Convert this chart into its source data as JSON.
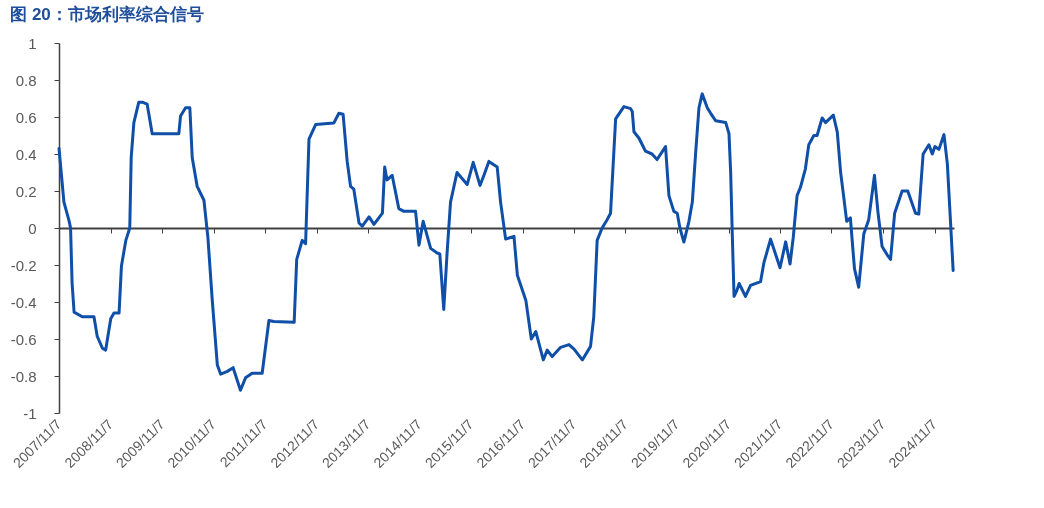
{
  "chart_data": {
    "type": "line",
    "title": "图 20：市场利率综合信号",
    "x": [
      "2007-11-07",
      "2007-12-12",
      "2008-01-17",
      "2008-01-28",
      "2008-02-08",
      "2008-02-22",
      "2008-04-20",
      "2008-07-12",
      "2008-08-04",
      "2008-09-10",
      "2008-10-03",
      "2008-11-08",
      "2008-12-01",
      "2009-01-06",
      "2009-01-23",
      "2009-02-23",
      "2009-03-23",
      "2009-04-02",
      "2009-04-21",
      "2009-05-26",
      "2009-06-19",
      "2009-07-24",
      "2009-08-29",
      "2009-10-28",
      "2010-03-06",
      "2010-03-18",
      "2010-04-23",
      "2010-05-23",
      "2010-06-09",
      "2010-07-14",
      "2010-08-31",
      "2010-09-28",
      "2010-10-29",
      "2010-12-04",
      "2010-12-28",
      "2011-02-13",
      "2011-03-26",
      "2011-05-17",
      "2011-06-22",
      "2011-08-08",
      "2011-10-18",
      "2011-12-05",
      "2012-01-10",
      "2012-06-01",
      "2012-06-19",
      "2012-07-28",
      "2012-08-21",
      "2012-09-14",
      "2012-11-01",
      "2013-03-09",
      "2013-04-14",
      "2013-05-14",
      "2013-06-12",
      "2013-07-06",
      "2013-07-29",
      "2013-09-04",
      "2013-09-27",
      "2013-11-14",
      "2013-12-19",
      "2014-02-17",
      "2014-03-05",
      "2014-03-22",
      "2014-04-27",
      "2014-06-13",
      "2014-07-19",
      "2014-10-10",
      "2014-11-03",
      "2014-12-03",
      "2015-01-25",
      "2015-03-12",
      "2015-03-31",
      "2015-04-28",
      "2015-05-22",
      "2015-06-15",
      "2015-07-31",
      "2015-10-11",
      "2015-11-23",
      "2016-01-10",
      "2016-02-07",
      "2016-03-13",
      "2016-05-11",
      "2016-06-04",
      "2016-07-10",
      "2016-09-07",
      "2016-10-01",
      "2016-11-30",
      "2017-01-08",
      "2017-02-09",
      "2017-04-03",
      "2017-05-01",
      "2017-06-05",
      "2017-08-04",
      "2017-10-02",
      "2017-11-07",
      "2018-01-05",
      "2018-03-04",
      "2018-03-27",
      "2018-04-20",
      "2018-05-25",
      "2018-06-30",
      "2018-07-24",
      "2018-08-29",
      "2018-10-27",
      "2018-12-13",
      "2018-12-25",
      "2019-01-06",
      "2019-02-11",
      "2019-03-29",
      "2019-05-14",
      "2019-06-19",
      "2019-08-18",
      "2019-09-11",
      "2019-10-16",
      "2019-11-09",
      "2019-11-28",
      "2019-12-26",
      "2020-01-31",
      "2020-02-24",
      "2020-03-18",
      "2020-04-11",
      "2020-05-04",
      "2020-06-09",
      "2020-07-03",
      "2020-08-07",
      "2020-10-18",
      "2020-11-10",
      "2020-11-22",
      "2020-12-04",
      "2020-12-16",
      "2021-01-04",
      "2021-01-21",
      "2021-03-07",
      "2021-04-12",
      "2021-06-22",
      "2021-07-15",
      "2021-09-01",
      "2021-11-07",
      "2021-12-17",
      "2022-01-17",
      "2022-02-09",
      "2022-03-08",
      "2022-04-01",
      "2022-05-06",
      "2022-05-30",
      "2022-07-05",
      "2022-07-28",
      "2022-09-02",
      "2022-09-26",
      "2022-11-20",
      "2022-12-18",
      "2023-01-11",
      "2023-02-04",
      "2023-02-23",
      "2023-03-21",
      "2023-04-19",
      "2023-05-19",
      "2023-06-24",
      "2023-07-29",
      "2023-09-08",
      "2023-10-02",
      "2023-11-01",
      "2023-12-07",
      "2023-12-31",
      "2024-01-29",
      "2024-03-22",
      "2024-05-01",
      "2024-06-25",
      "2024-07-18",
      "2024-08-18",
      "2024-09-28",
      "2024-10-22",
      "2024-11-10",
      "2024-12-08",
      "2025-01-13",
      "2025-02-06",
      "2025-03-19"
    ],
    "series": [
      {
        "color": "#0f4fa8",
        "values": [
          0.43,
          0.14,
          0.04,
          0.0,
          -0.3,
          -0.455,
          -0.48,
          -0.48,
          -0.585,
          -0.65,
          -0.66,
          -0.49,
          -0.46,
          -0.46,
          -0.205,
          -0.067,
          0.0,
          0.38,
          0.57,
          0.68,
          0.68,
          0.67,
          0.51,
          0.51,
          0.51,
          0.605,
          0.65,
          0.65,
          0.38,
          0.225,
          0.15,
          -0.05,
          -0.39,
          -0.74,
          -0.79,
          -0.775,
          -0.755,
          -0.877,
          -0.81,
          -0.785,
          -0.785,
          -0.5,
          -0.505,
          -0.51,
          -0.17,
          -0.067,
          -0.085,
          0.48,
          0.56,
          0.567,
          0.62,
          0.615,
          0.36,
          0.225,
          0.21,
          0.027,
          0.01,
          0.06,
          0.02,
          0.08,
          0.33,
          0.26,
          0.285,
          0.105,
          0.09,
          0.09,
          -0.093,
          0.036,
          -0.11,
          -0.135,
          -0.14,
          -0.44,
          -0.13,
          0.14,
          0.3,
          0.235,
          0.355,
          0.23,
          0.285,
          0.36,
          0.33,
          0.14,
          -0.06,
          -0.045,
          -0.255,
          -0.39,
          -0.6,
          -0.56,
          -0.713,
          -0.66,
          -0.695,
          -0.645,
          -0.63,
          -0.655,
          -0.713,
          -0.64,
          -0.48,
          -0.067,
          0.0,
          0.045,
          0.08,
          0.59,
          0.656,
          0.645,
          0.63,
          0.52,
          0.485,
          0.415,
          0.4,
          0.37,
          0.44,
          0.175,
          0.09,
          0.08,
          0.0,
          -0.076,
          0.036,
          0.14,
          0.4,
          0.65,
          0.725,
          0.65,
          0.62,
          0.58,
          0.57,
          0.51,
          0.3,
          -0.05,
          -0.37,
          -0.34,
          -0.3,
          -0.37,
          -0.31,
          -0.29,
          -0.19,
          -0.06,
          -0.215,
          -0.075,
          -0.195,
          -0.05,
          0.175,
          0.22,
          0.32,
          0.45,
          0.5,
          0.5,
          0.595,
          0.57,
          0.61,
          0.52,
          0.3,
          0.155,
          0.036,
          0.055,
          -0.22,
          -0.32,
          -0.033,
          0.045,
          0.285,
          0.09,
          -0.1,
          -0.145,
          -0.17,
          0.08,
          0.2,
          0.2,
          0.08,
          0.075,
          0.4,
          0.45,
          0.4,
          0.44,
          0.425,
          0.505,
          0.345,
          -0.23
        ]
      }
    ],
    "xlim": [
      "2007-11-07",
      "2025-03-25"
    ],
    "xticks": [
      {
        "value": "2007-11-07",
        "label": "2007/11/7"
      },
      {
        "value": "2008-11-07",
        "label": "2008/11/7"
      },
      {
        "value": "2009-11-07",
        "label": "2009/11/7"
      },
      {
        "value": "2010-11-07",
        "label": "2010/11/7"
      },
      {
        "value": "2011-11-07",
        "label": "2011/11/7"
      },
      {
        "value": "2012-11-07",
        "label": "2012/11/7"
      },
      {
        "value": "2013-11-07",
        "label": "2013/11/7"
      },
      {
        "value": "2014-11-07",
        "label": "2014/11/7"
      },
      {
        "value": "2015-11-07",
        "label": "2015/11/7"
      },
      {
        "value": "2016-11-07",
        "label": "2016/11/7"
      },
      {
        "value": "2017-11-07",
        "label": "2017/11/7"
      },
      {
        "value": "2018-11-07",
        "label": "2018/11/7"
      },
      {
        "value": "2019-11-07",
        "label": "2019/11/7"
      },
      {
        "value": "2020-11-07",
        "label": "2020/11/7"
      },
      {
        "value": "2021-11-07",
        "label": "2021/11/7"
      },
      {
        "value": "2022-11-07",
        "label": "2022/11/7"
      },
      {
        "value": "2023-11-07",
        "label": "2023/11/7"
      },
      {
        "value": "2024-11-07",
        "label": "2024/11/7"
      }
    ],
    "ylim": [
      -1,
      1
    ],
    "yticks": [
      -1,
      -0.8,
      -0.6,
      -0.4,
      -0.2,
      0,
      0.2,
      0.4,
      0.6,
      0.8,
      1
    ],
    "marker": "none",
    "line_style": "solid"
  }
}
